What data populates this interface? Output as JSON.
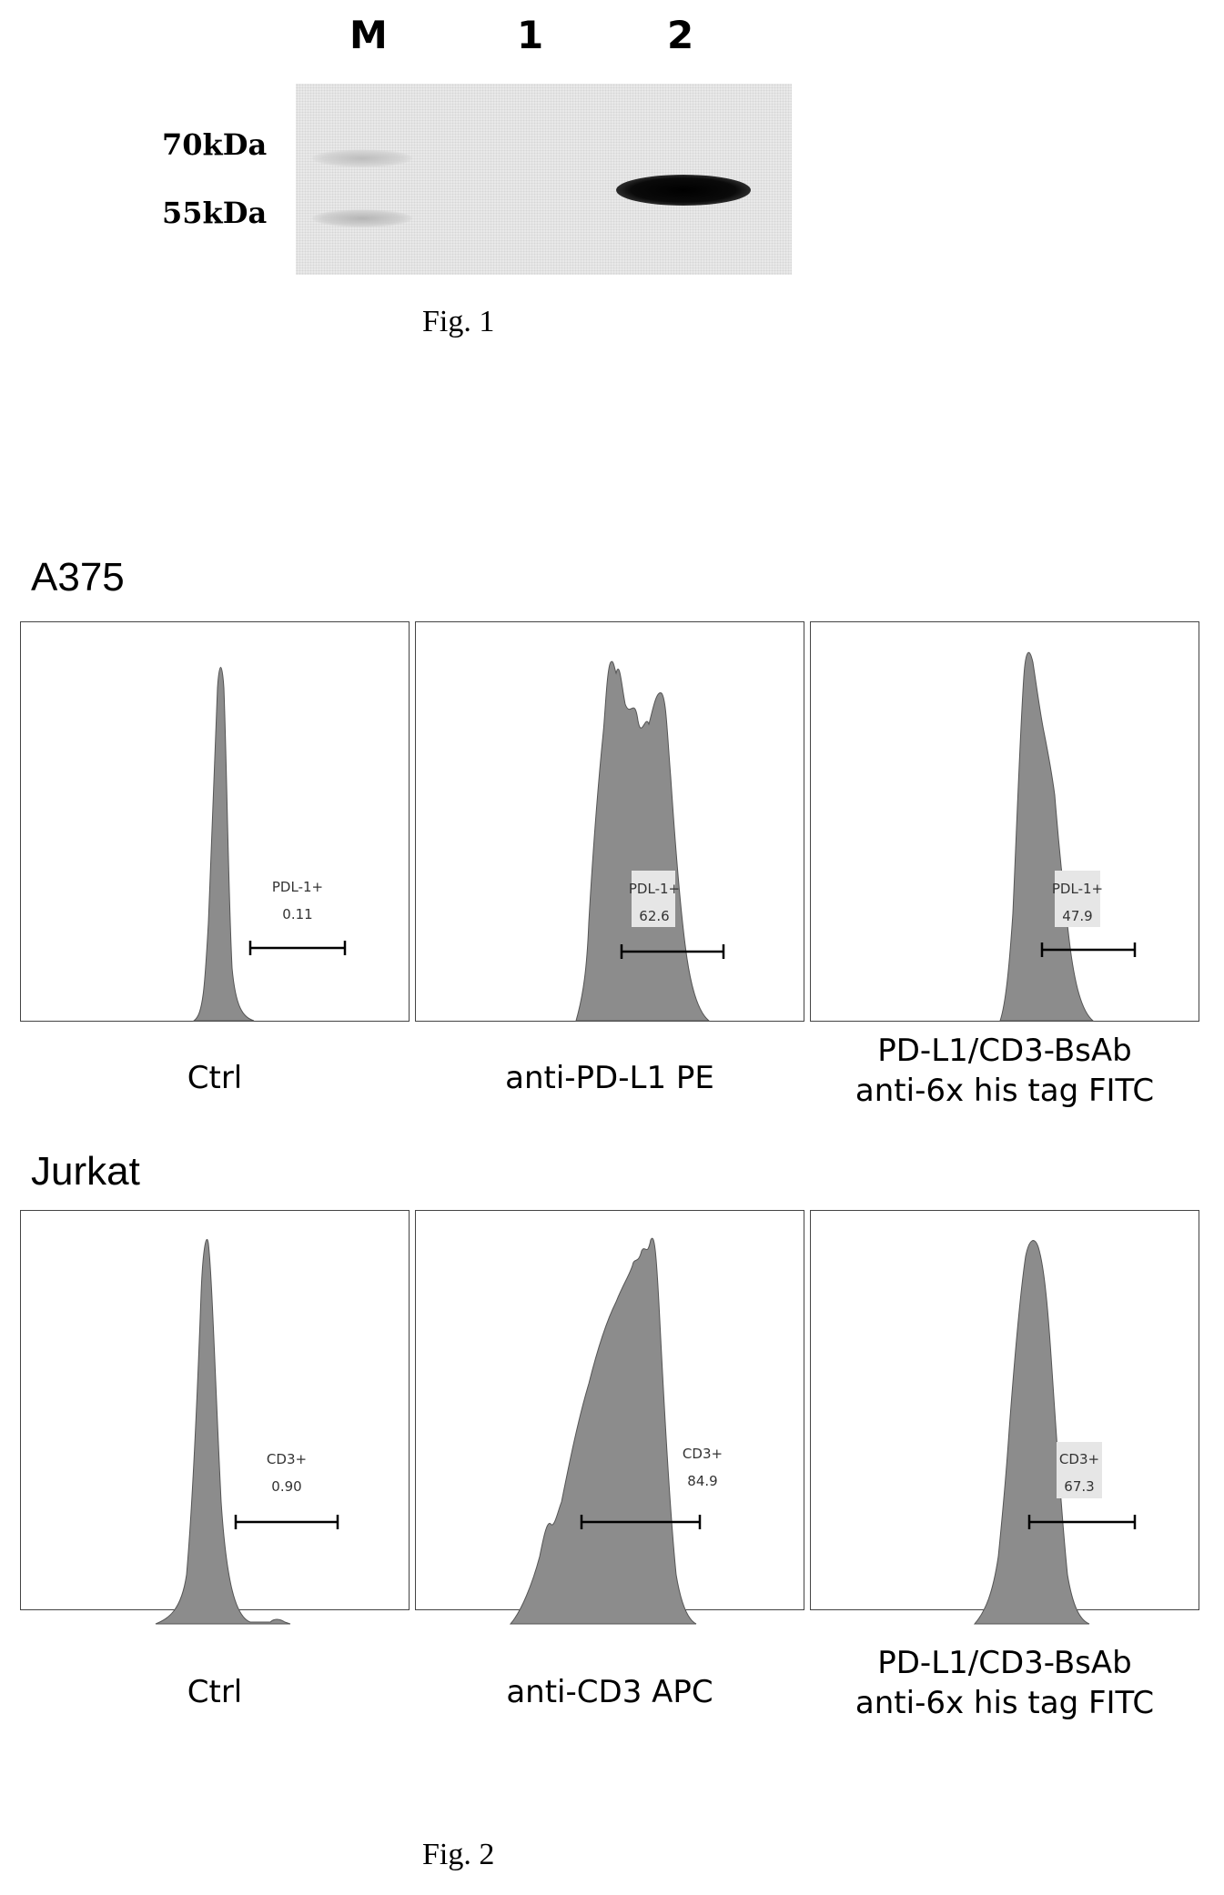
{
  "figure1": {
    "lanes": [
      "M",
      "1",
      "2"
    ],
    "markers": [
      "70kDa",
      "55kDa"
    ],
    "caption": "Fig. 1"
  },
  "figure2": {
    "caption": "Fig. 2",
    "rows": [
      {
        "cell_line": "A375",
        "panels": [
          {
            "gate_label": "PDL-1+",
            "gate_value": "0.11",
            "caption_line1": "Ctrl",
            "caption_line2": ""
          },
          {
            "gate_label": "PDL-1+",
            "gate_value": "62.6",
            "caption_line1": "anti-PD-L1 PE",
            "caption_line2": ""
          },
          {
            "gate_label": "PDL-1+",
            "gate_value": "47.9",
            "caption_line1": "PD-L1/CD3-BsAb",
            "caption_line2": "anti-6x his tag FITC"
          }
        ]
      },
      {
        "cell_line": "Jurkat",
        "panels": [
          {
            "gate_label": "CD3+",
            "gate_value": "0.90",
            "caption_line1": "Ctrl",
            "caption_line2": ""
          },
          {
            "gate_label": "CD3+",
            "gate_value": "84.9",
            "caption_line1": "anti-CD3 APC",
            "caption_line2": ""
          },
          {
            "gate_label": "CD3+",
            "gate_value": "67.3",
            "caption_line1": "PD-L1/CD3-BsAb",
            "caption_line2": "anti-6x his tag FITC"
          }
        ]
      }
    ]
  },
  "colors": {
    "histogram_fill": "#8c8c8c",
    "band_dark": "#0a0a0a",
    "band_faint": "#c8c8c8"
  }
}
